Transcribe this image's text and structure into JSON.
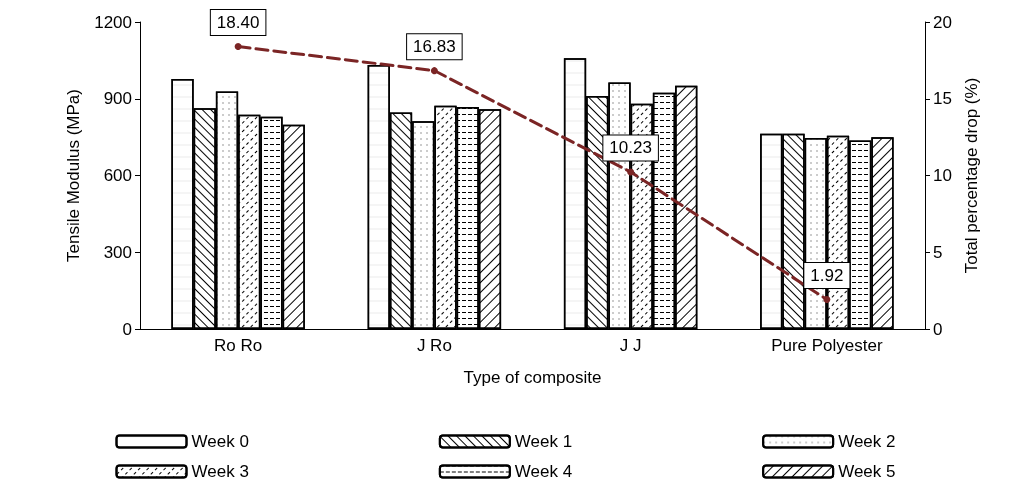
{
  "chart_data": {
    "type": "bar",
    "xlabel": "Type of composite",
    "ylabel": "Tensile Modulus (MPa)",
    "y2label": "Total percentage drop (%)",
    "categories": [
      "Ro Ro",
      "J Ro",
      "J J",
      "Pure Polyester"
    ],
    "series": [
      {
        "name": "Week 0",
        "color": "#ffffff",
        "values": [
          977,
          1032,
          1058,
          763
        ]
      },
      {
        "name": "Week 1",
        "color": "#ffffff",
        "values": [
          863,
          846,
          911,
          763
        ]
      },
      {
        "name": "Week 2",
        "color": "#ffffff",
        "values": [
          928,
          812,
          964,
          747
        ]
      },
      {
        "name": "Week 3",
        "color": "#ffffff",
        "values": [
          837,
          873,
          880,
          755
        ]
      },
      {
        "name": "Week 4",
        "color": "#ffffff",
        "values": [
          830,
          868,
          923,
          737
        ]
      },
      {
        "name": "Week 5",
        "color": "#ffffff",
        "values": [
          798,
          859,
          951,
          750
        ]
      },
      {
        "type": "line",
        "axis": "y2",
        "color": "#7b2525",
        "line_style": "dashed",
        "marker": "circle",
        "values": [
          18.4,
          16.83,
          10.23,
          1.92
        ],
        "value_labels": [
          "18.40",
          "16.83",
          "10.23",
          "1.92"
        ]
      }
    ],
    "ylim": [
      0,
      1200
    ],
    "yticks": [
      0,
      300,
      600,
      900,
      1200
    ],
    "y2lim": [
      0,
      20
    ],
    "y2ticks": [
      0,
      5,
      10,
      15,
      20
    ],
    "grid": false,
    "legend": "bottom"
  }
}
